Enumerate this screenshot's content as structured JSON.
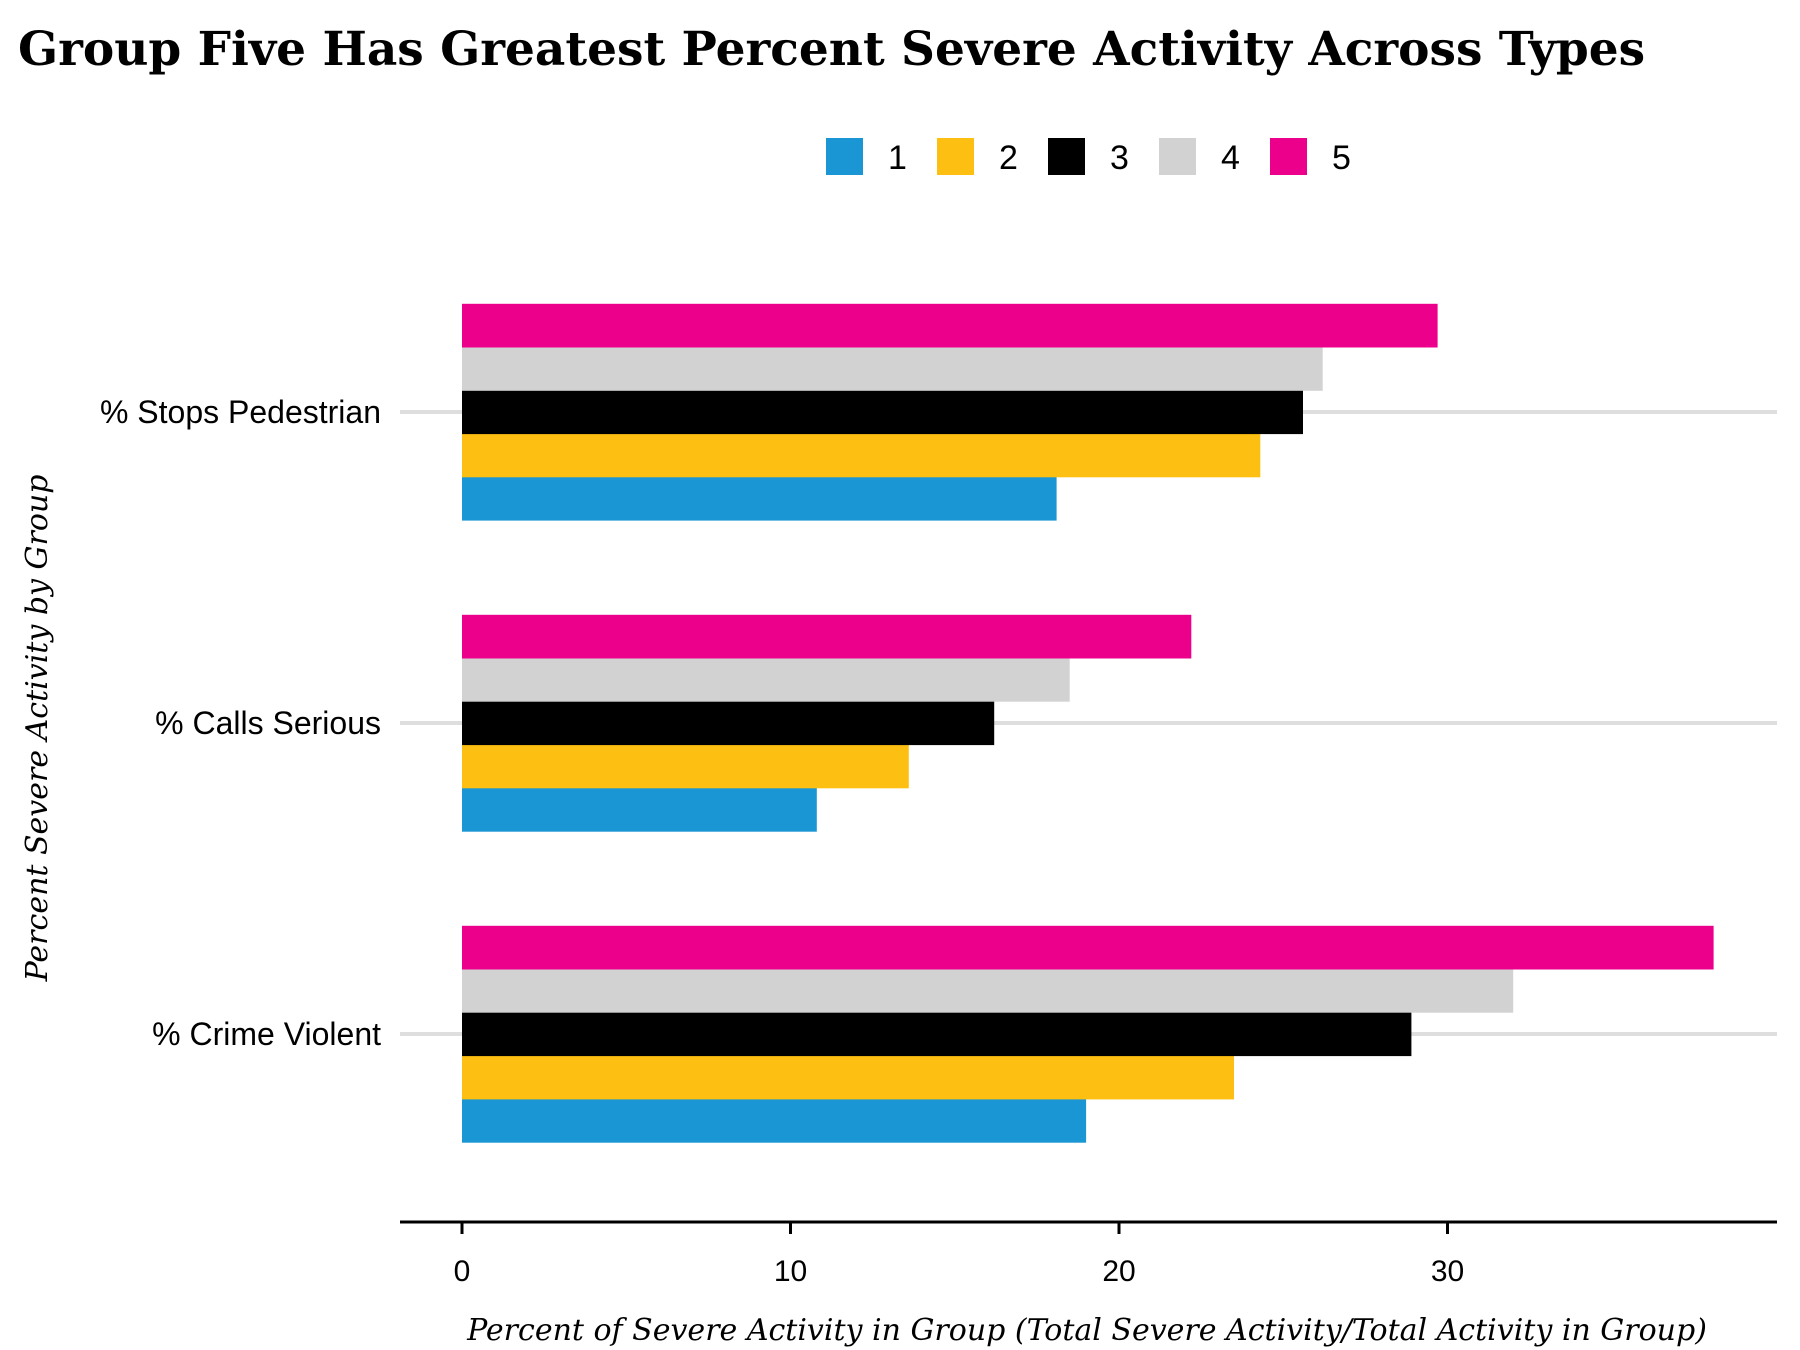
{
  "chart_data": {
    "type": "bar",
    "orientation": "horizontal",
    "title": "Group Five Has Greatest Percent Severe Activity Across Types",
    "xlabel": "Percent of Severe Activity in Group (Total Severe Activity/Total Activity in Group)",
    "ylabel": "Percent Severe Activity by Group",
    "categories": [
      "% Stops Pedestrian",
      "% Calls Serious",
      "% Crime Violent"
    ],
    "series": [
      {
        "name": "1",
        "color": "#1996D3",
        "values": [
          18.1,
          10.8,
          19.0
        ]
      },
      {
        "name": "2",
        "color": "#FDBF11",
        "values": [
          24.3,
          13.6,
          23.5
        ]
      },
      {
        "name": "3",
        "color": "#000000",
        "values": [
          25.6,
          16.2,
          28.9
        ]
      },
      {
        "name": "4",
        "color": "#D2D2D2",
        "values": [
          26.2,
          18.5,
          32.0
        ]
      },
      {
        "name": "5",
        "color": "#EC008B",
        "values": [
          29.7,
          22.2,
          38.1
        ]
      }
    ],
    "xlim": [
      -1.9,
      40.0
    ],
    "xticks": [
      0,
      10,
      20,
      30
    ],
    "legend_position": "top",
    "grid": "horizontal"
  }
}
